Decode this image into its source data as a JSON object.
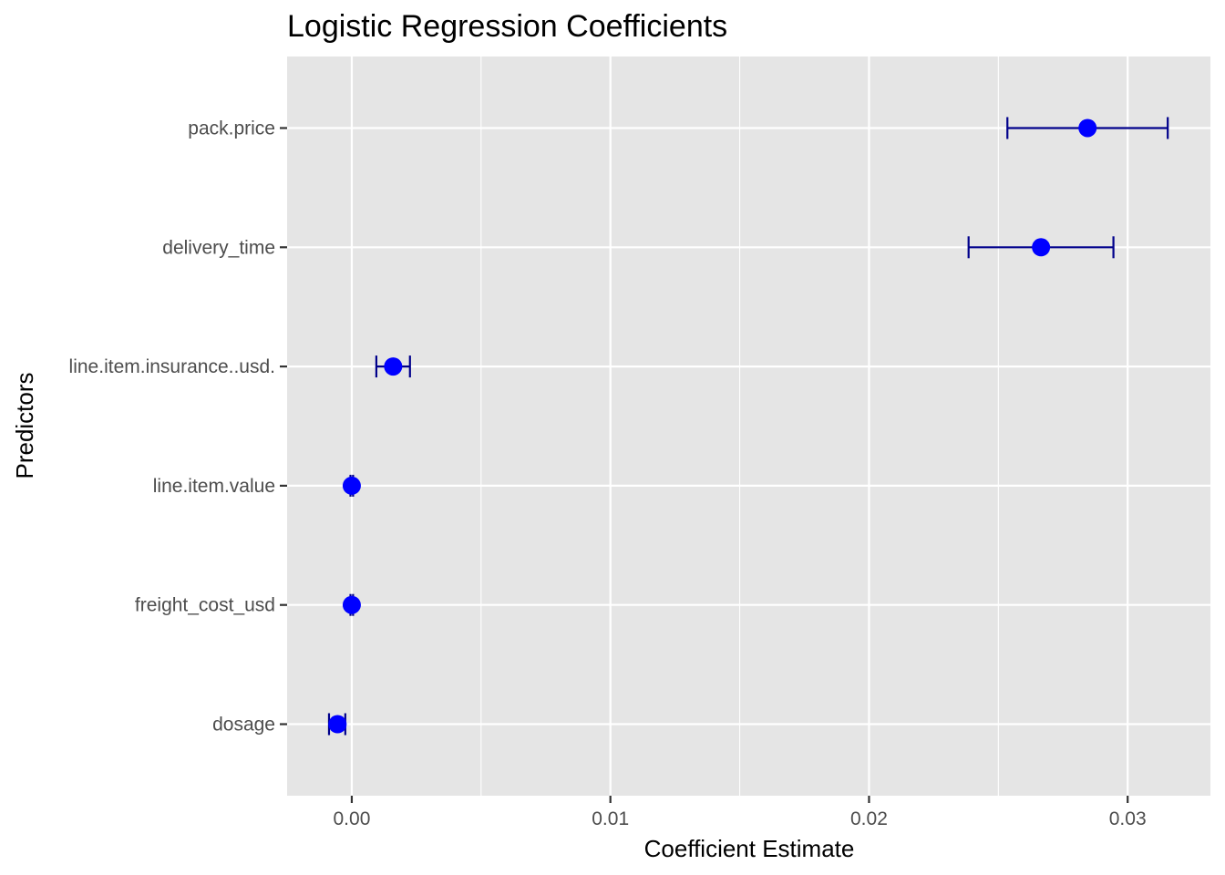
{
  "chart_data": {
    "type": "scatter",
    "title": "Logistic Regression Coefficients",
    "xlabel": "Coefficient Estimate",
    "ylabel": "Predictors",
    "xlim": [
      -0.0025,
      0.0332
    ],
    "x_ticks": [
      0.0,
      0.01,
      0.02,
      0.03
    ],
    "x_tick_labels": [
      "0.00",
      "0.01",
      "0.02",
      "0.03"
    ],
    "grid": true,
    "legend": "none",
    "point_color": "#0000ff",
    "errorbar_color": "#00008b",
    "panel_background": "#e5e5e5",
    "grid_color": "#ffffff",
    "categories": [
      "pack.price",
      "delivery_time",
      "line.item.insurance..usd.",
      "line.item.value",
      "freight_cost_usd",
      "dosage"
    ],
    "points": [
      {
        "predictor": "pack.price",
        "estimate": 0.02845,
        "lower": 0.02535,
        "upper": 0.03155
      },
      {
        "predictor": "delivery_time",
        "estimate": 0.02665,
        "lower": 0.02385,
        "upper": 0.02945
      },
      {
        "predictor": "line.item.insurance..usd.",
        "estimate": 0.0016,
        "lower": 0.00095,
        "upper": 0.00225
      },
      {
        "predictor": "line.item.value",
        "estimate": 0.0,
        "lower": -5e-05,
        "upper": 5e-05
      },
      {
        "predictor": "freight_cost_usd",
        "estimate": 0.0,
        "lower": -5e-05,
        "upper": 5e-05
      },
      {
        "predictor": "dosage",
        "estimate": -0.00055,
        "lower": -0.00088,
        "upper": -0.00025
      }
    ]
  }
}
